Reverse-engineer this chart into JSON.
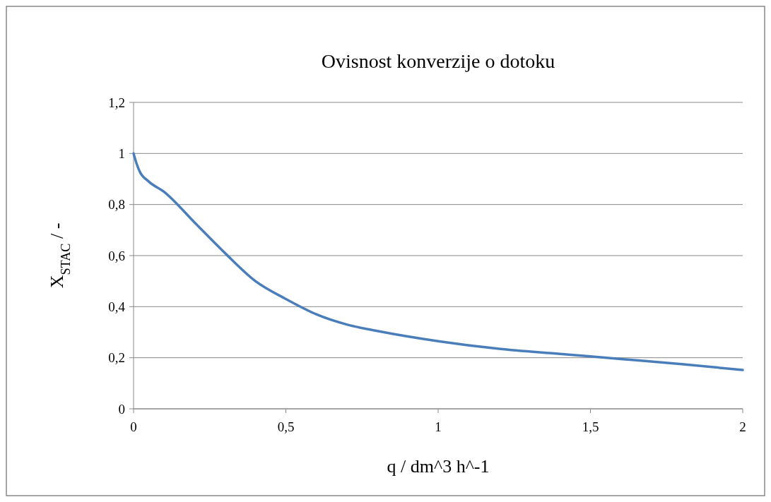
{
  "chart_data": {
    "type": "line",
    "title": "Ovisnost konverzije o dotoku",
    "xlabel": "q / dm^3 h^-1",
    "ylabel": "X$_{STAC}$ / -",
    "x": [
      0,
      0.01,
      0.02,
      0.05,
      0.1,
      0.2,
      0.3,
      0.4,
      0.5,
      0.6,
      0.7,
      0.8,
      1.0,
      1.2,
      1.4,
      1.6,
      1.8,
      2.0
    ],
    "series": [
      {
        "color": "#4a7ebb",
        "values": [
          1.0,
          0.96,
          0.93,
          0.89,
          0.85,
          0.73,
          0.61,
          0.5,
          0.43,
          0.37,
          0.33,
          0.305,
          0.265,
          0.235,
          0.215,
          0.195,
          0.175,
          0.152
        ]
      }
    ],
    "xlim": [
      0,
      2
    ],
    "xticks": [
      0,
      {
        "value": 0.5,
        "label": "0,5"
      },
      1,
      {
        "value": 1.5,
        "label": "1,5"
      },
      2
    ],
    "ylim": [
      0,
      1.2
    ],
    "yticks": [
      0,
      {
        "value": 0.2,
        "label": "0,2"
      },
      {
        "value": 0.4,
        "label": "0,4"
      },
      {
        "value": 0.6,
        "label": "0,6"
      },
      {
        "value": 0.8,
        "label": "0,8"
      },
      1,
      {
        "value": 1.2,
        "label": "1,2"
      }
    ],
    "grid": "y"
  }
}
